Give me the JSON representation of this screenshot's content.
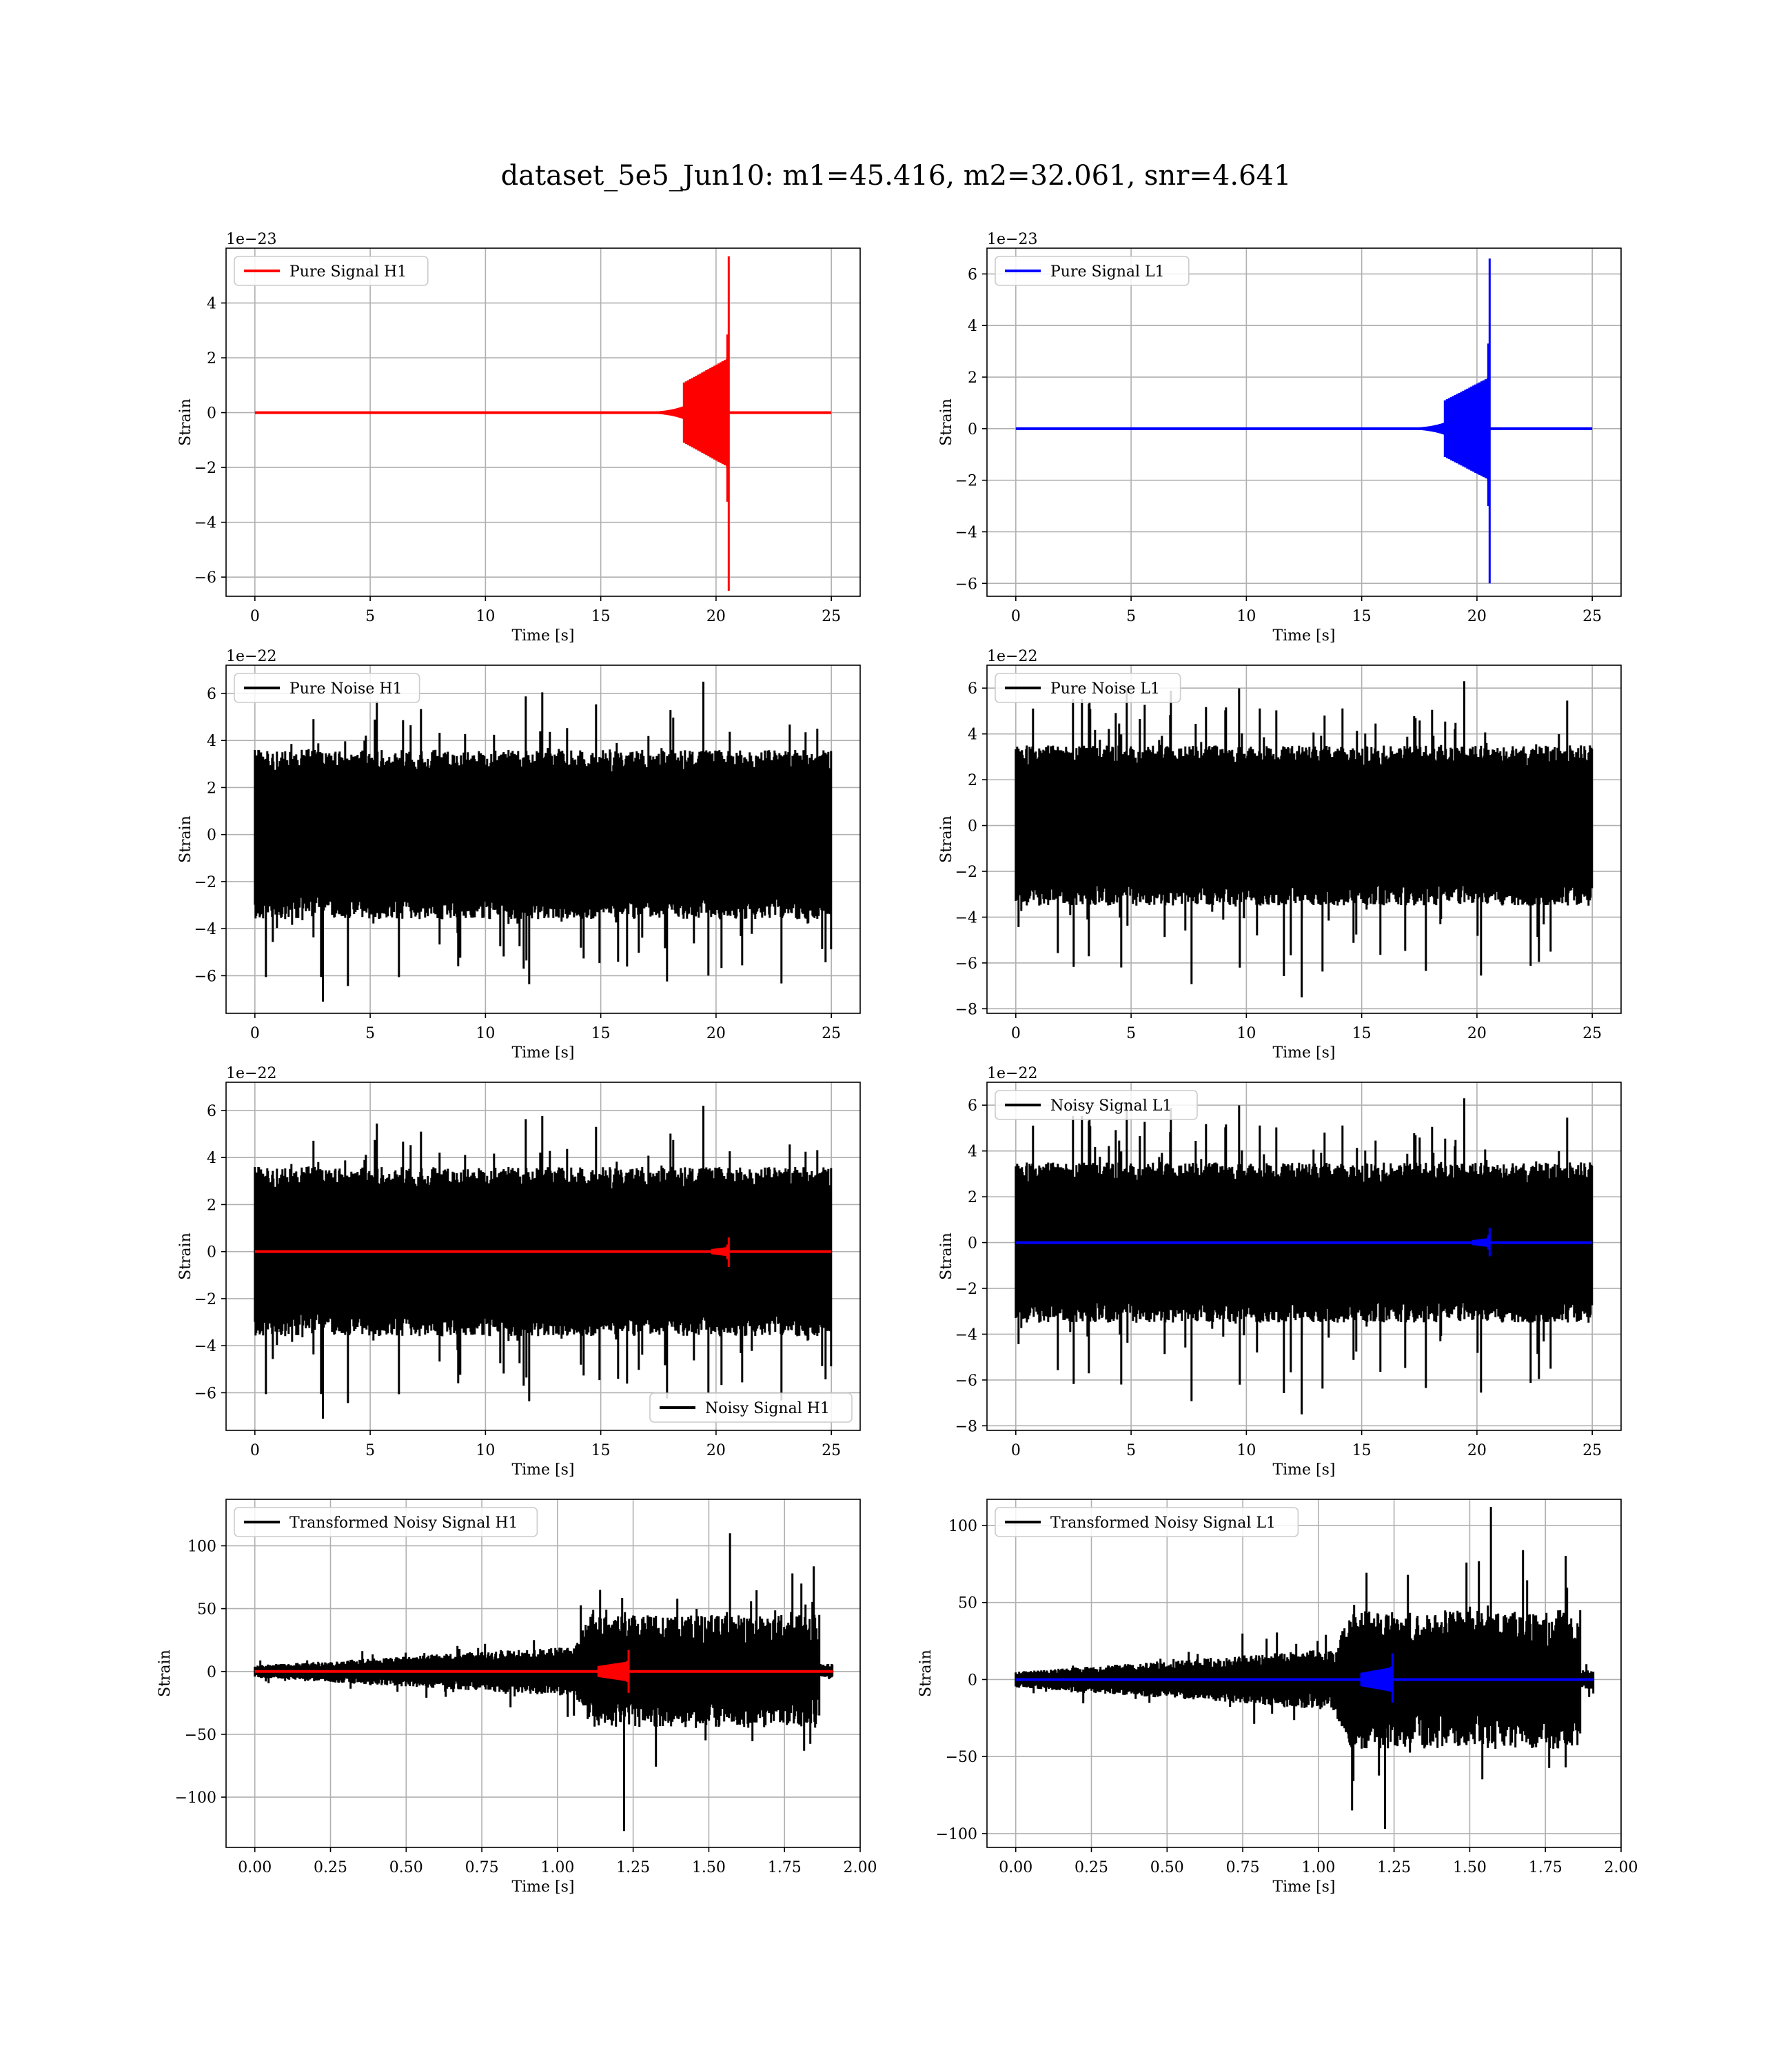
{
  "title": "dataset_5e5_Jun10: m1=45.416, m2=32.061, snr=4.641",
  "colors": {
    "h1": "#ff0000",
    "l1": "#0000ff",
    "noise": "#000000",
    "grid": "#b0b0b0"
  },
  "chart_data": [
    {
      "id": "pure-signal-h1",
      "type": "line",
      "xlabel": "Time [s]",
      "ylabel": "Strain",
      "offset_label": "1e−23",
      "xlim": [
        -1.25,
        26.25
      ],
      "ylim": [
        -6.7,
        6.0
      ],
      "xticks": [
        0,
        5,
        10,
        15,
        20,
        25
      ],
      "xtick_labels": [
        "0",
        "5",
        "10",
        "15",
        "20",
        "25"
      ],
      "yticks": [
        -6,
        -4,
        -2,
        0,
        2,
        4
      ],
      "ytick_labels": [
        "−6",
        "−4",
        "−2",
        "0",
        "2",
        "4"
      ],
      "legend_loc": "upper-left",
      "series": [
        {
          "name": "Pure Signal H1",
          "style": "chirp",
          "color": "#ff0000",
          "x_range": [
            0,
            25
          ],
          "merger_t": 20.55,
          "peak_up": 5.7,
          "peak_down": -6.5,
          "body": 2.0,
          "onset_t": 15.0
        }
      ]
    },
    {
      "id": "pure-signal-l1",
      "type": "line",
      "xlabel": "Time [s]",
      "ylabel": "Strain",
      "offset_label": "1e−23",
      "xlim": [
        -1.25,
        26.25
      ],
      "ylim": [
        -6.5,
        7.0
      ],
      "xticks": [
        0,
        5,
        10,
        15,
        20,
        25
      ],
      "xtick_labels": [
        "0",
        "5",
        "10",
        "15",
        "20",
        "25"
      ],
      "yticks": [
        -6,
        -4,
        -2,
        0,
        2,
        4,
        6
      ],
      "ytick_labels": [
        "−6",
        "−4",
        "−2",
        "0",
        "2",
        "4",
        "6"
      ],
      "legend_loc": "upper-left",
      "series": [
        {
          "name": "Pure Signal L1",
          "style": "chirp",
          "color": "#0000ff",
          "x_range": [
            0,
            25
          ],
          "merger_t": 20.55,
          "peak_up": 6.6,
          "peak_down": -6.0,
          "body": 2.0,
          "onset_t": 15.0
        }
      ]
    },
    {
      "id": "pure-noise-h1",
      "type": "line",
      "xlabel": "Time [s]",
      "ylabel": "Strain",
      "offset_label": "1e−22",
      "xlim": [
        -1.25,
        26.25
      ],
      "ylim": [
        -7.6,
        7.2
      ],
      "xticks": [
        0,
        5,
        10,
        15,
        20,
        25
      ],
      "xtick_labels": [
        "0",
        "5",
        "10",
        "15",
        "20",
        "25"
      ],
      "yticks": [
        -6,
        -4,
        -2,
        0,
        2,
        4,
        6
      ],
      "ytick_labels": [
        "−6",
        "−4",
        "−2",
        "0",
        "2",
        "4",
        "6"
      ],
      "legend_loc": "upper-left",
      "series": [
        {
          "name": "Pure Noise H1",
          "style": "noise",
          "color": "#000000",
          "x_range": [
            0,
            25
          ],
          "band": 3.6,
          "max": 6.5,
          "min": -7.1,
          "seed": 11
        }
      ]
    },
    {
      "id": "pure-noise-l1",
      "type": "line",
      "xlabel": "Time [s]",
      "ylabel": "Strain",
      "offset_label": "1e−22",
      "xlim": [
        -1.25,
        26.25
      ],
      "ylim": [
        -8.2,
        7.0
      ],
      "xticks": [
        0,
        5,
        10,
        15,
        20,
        25
      ],
      "xtick_labels": [
        "0",
        "5",
        "10",
        "15",
        "20",
        "25"
      ],
      "yticks": [
        -8,
        -6,
        -4,
        -2,
        0,
        2,
        4,
        6
      ],
      "ytick_labels": [
        "−8",
        "−6",
        "−4",
        "−2",
        "0",
        "2",
        "4",
        "6"
      ],
      "legend_loc": "upper-left",
      "series": [
        {
          "name": "Pure Noise L1",
          "style": "noise",
          "color": "#000000",
          "x_range": [
            0,
            25
          ],
          "band": 3.5,
          "max": 6.3,
          "min": -7.5,
          "seed": 23
        }
      ]
    },
    {
      "id": "noisy-signal-h1",
      "type": "line",
      "xlabel": "Time [s]",
      "ylabel": "Strain",
      "offset_label": "1e−22",
      "xlim": [
        -1.25,
        26.25
      ],
      "ylim": [
        -7.6,
        7.2
      ],
      "xticks": [
        0,
        5,
        10,
        15,
        20,
        25
      ],
      "xtick_labels": [
        "0",
        "5",
        "10",
        "15",
        "20",
        "25"
      ],
      "yticks": [
        -6,
        -4,
        -2,
        0,
        2,
        4,
        6
      ],
      "ytick_labels": [
        "−6",
        "−4",
        "−2",
        "0",
        "2",
        "4",
        "6"
      ],
      "legend_loc": "lower-right",
      "series": [
        {
          "name": "Noisy Signal H1",
          "style": "noise",
          "color": "#000000",
          "x_range": [
            0,
            25
          ],
          "band": 3.6,
          "max": 6.2,
          "min": -7.1,
          "seed": 11
        },
        {
          "name": "",
          "style": "chirp",
          "color": "#ff0000",
          "x_range": [
            0,
            25
          ],
          "merger_t": 20.55,
          "peak_up": 0.6,
          "peak_down": -0.65,
          "body": 0.2,
          "onset_t": 18.5
        }
      ]
    },
    {
      "id": "noisy-signal-l1",
      "type": "line",
      "xlabel": "Time [s]",
      "ylabel": "Strain",
      "offset_label": "1e−22",
      "xlim": [
        -1.25,
        26.25
      ],
      "ylim": [
        -8.2,
        7.0
      ],
      "xticks": [
        0,
        5,
        10,
        15,
        20,
        25
      ],
      "xtick_labels": [
        "0",
        "5",
        "10",
        "15",
        "20",
        "25"
      ],
      "yticks": [
        -8,
        -6,
        -4,
        -2,
        0,
        2,
        4,
        6
      ],
      "ytick_labels": [
        "−8",
        "−6",
        "−4",
        "−2",
        "0",
        "2",
        "4",
        "6"
      ],
      "legend_loc": "upper-left",
      "series": [
        {
          "name": "Noisy Signal L1",
          "style": "noise",
          "color": "#000000",
          "x_range": [
            0,
            25
          ],
          "band": 3.5,
          "max": 6.3,
          "min": -7.5,
          "seed": 23
        },
        {
          "name": "",
          "style": "chirp",
          "color": "#0000ff",
          "x_range": [
            0,
            25
          ],
          "merger_t": 20.55,
          "peak_up": 0.65,
          "peak_down": -0.6,
          "body": 0.2,
          "onset_t": 18.5
        }
      ]
    },
    {
      "id": "transformed-noisy-signal-h1",
      "type": "line",
      "xlabel": "Time [s]",
      "ylabel": "Strain",
      "offset_label": "",
      "xlim": [
        -0.095,
        2.0
      ],
      "ylim": [
        -140,
        137
      ],
      "xticks": [
        0,
        0.25,
        0.5,
        0.75,
        1.0,
        1.25,
        1.5,
        1.75,
        2.0
      ],
      "xtick_labels": [
        "0.00",
        "0.25",
        "0.50",
        "0.75",
        "1.00",
        "1.25",
        "1.50",
        "1.75",
        "2.00"
      ],
      "yticks": [
        -100,
        -50,
        0,
        50,
        100
      ],
      "ytick_labels": [
        "−100",
        "−50",
        "0",
        "50",
        "100"
      ],
      "legend_loc": "upper-left",
      "series": [
        {
          "name": "Transformed Noisy Signal H1",
          "style": "whitened",
          "color": "#000000",
          "x_range": [
            0,
            1.91
          ],
          "seed": 5,
          "min": -127,
          "max": 110
        },
        {
          "name": "",
          "style": "chirp",
          "color": "#ff0000",
          "x_range": [
            0,
            1.91
          ],
          "merger_t": 1.235,
          "peak_up": 17,
          "peak_down": -17,
          "body": 8,
          "onset_t": 0.95
        }
      ]
    },
    {
      "id": "transformed-noisy-signal-l1",
      "type": "line",
      "xlabel": "Time [s]",
      "ylabel": "Strain",
      "offset_label": "",
      "xlim": [
        -0.095,
        2.0
      ],
      "ylim": [
        -109,
        117
      ],
      "xticks": [
        0,
        0.25,
        0.5,
        0.75,
        1.0,
        1.25,
        1.5,
        1.75,
        2.0
      ],
      "xtick_labels": [
        "0.00",
        "0.25",
        "0.50",
        "0.75",
        "1.00",
        "1.25",
        "1.50",
        "1.75",
        "2.00"
      ],
      "yticks": [
        -100,
        -50,
        0,
        50,
        100
      ],
      "ytick_labels": [
        "−100",
        "−50",
        "0",
        "50",
        "100"
      ],
      "legend_loc": "upper-left",
      "series": [
        {
          "name": "Transformed Noisy Signal L1",
          "style": "whitened",
          "color": "#000000",
          "x_range": [
            0,
            1.91
          ],
          "seed": 9,
          "min": -97,
          "max": 112
        },
        {
          "name": "",
          "style": "chirp",
          "color": "#0000ff",
          "x_range": [
            0,
            1.91
          ],
          "merger_t": 1.245,
          "peak_up": 17,
          "peak_down": -15,
          "body": 8,
          "onset_t": 0.95
        }
      ]
    }
  ]
}
